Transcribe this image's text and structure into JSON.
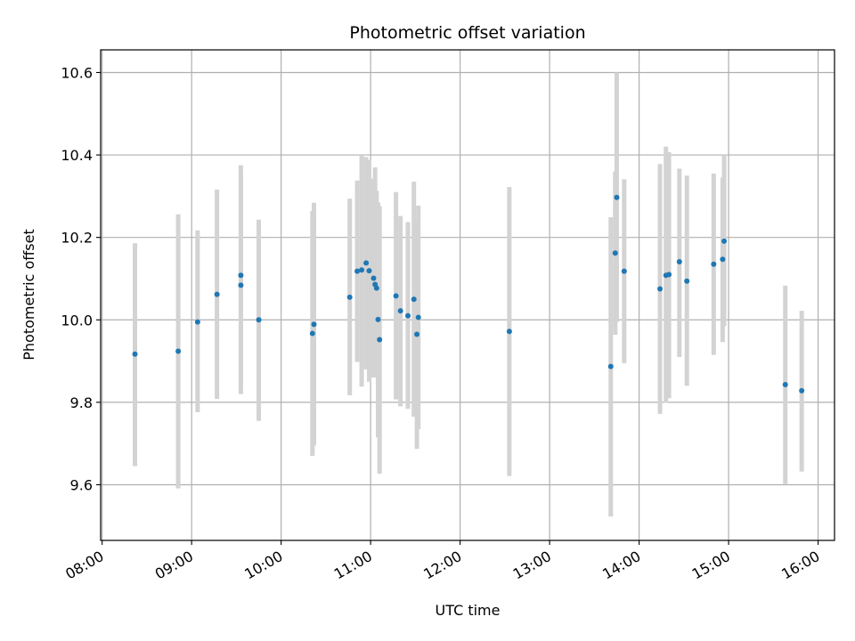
{
  "chart_data": {
    "type": "scatter",
    "title": "Photometric offset variation",
    "xlabel": "UTC time",
    "ylabel": "Photometric offset",
    "xlim": [
      "07:59",
      "16:11"
    ],
    "ylim": [
      9.465,
      10.655
    ],
    "x_ticks": [
      "08:00",
      "09:00",
      "10:00",
      "11:00",
      "12:00",
      "13:00",
      "14:00",
      "15:00",
      "16:00"
    ],
    "y_ticks": [
      "9.6",
      "9.8",
      "10.0",
      "10.2",
      "10.4",
      "10.6"
    ],
    "grid": true,
    "colors": {
      "point": "#1f77b4",
      "errorbar": "#d3d3d3",
      "grid": "#b0b0b0"
    },
    "points": [
      {
        "t": "08:22",
        "y": 9.917,
        "ylo": 9.645,
        "yhi": 10.186
      },
      {
        "t": "08:51",
        "y": 9.924,
        "ylo": 9.591,
        "yhi": 10.256
      },
      {
        "t": "09:04",
        "y": 9.995,
        "ylo": 9.776,
        "yhi": 10.217
      },
      {
        "t": "09:17",
        "y": 10.062,
        "ylo": 9.808,
        "yhi": 10.316
      },
      {
        "t": "09:33",
        "y": 10.108,
        "ylo": 9.842,
        "yhi": 10.375
      },
      {
        "t": "09:33",
        "y": 10.084,
        "ylo": 9.82,
        "yhi": 10.35
      },
      {
        "t": "09:45",
        "y": 10.0,
        "ylo": 9.755,
        "yhi": 10.243
      },
      {
        "t": "10:21",
        "y": 9.967,
        "ylo": 9.67,
        "yhi": 10.264
      },
      {
        "t": "10:22",
        "y": 9.989,
        "ylo": 9.695,
        "yhi": 10.284
      },
      {
        "t": "10:46",
        "y": 10.055,
        "ylo": 9.817,
        "yhi": 10.294
      },
      {
        "t": "10:51",
        "y": 10.118,
        "ylo": 9.898,
        "yhi": 10.338
      },
      {
        "t": "10:54",
        "y": 10.121,
        "ylo": 9.838,
        "yhi": 10.4
      },
      {
        "t": "10:57",
        "y": 10.138,
        "ylo": 9.88,
        "yhi": 10.395
      },
      {
        "t": "10:59",
        "y": 10.119,
        "ylo": 9.85,
        "yhi": 10.388
      },
      {
        "t": "11:02",
        "y": 10.101,
        "ylo": 9.86,
        "yhi": 10.343
      },
      {
        "t": "11:03",
        "y": 10.086,
        "ylo": 9.9,
        "yhi": 10.37
      },
      {
        "t": "11:04",
        "y": 10.077,
        "ylo": 9.87,
        "yhi": 10.313
      },
      {
        "t": "11:05",
        "y": 10.001,
        "ylo": 9.715,
        "yhi": 10.285
      },
      {
        "t": "11:06",
        "y": 9.952,
        "ylo": 9.627,
        "yhi": 10.276
      },
      {
        "t": "11:17",
        "y": 10.058,
        "ylo": 9.807,
        "yhi": 10.31
      },
      {
        "t": "11:20",
        "y": 10.022,
        "ylo": 9.79,
        "yhi": 10.252
      },
      {
        "t": "11:25",
        "y": 10.01,
        "ylo": 9.784,
        "yhi": 10.237
      },
      {
        "t": "11:29",
        "y": 10.05,
        "ylo": 9.765,
        "yhi": 10.335
      },
      {
        "t": "11:31",
        "y": 9.965,
        "ylo": 9.687,
        "yhi": 10.242
      },
      {
        "t": "11:32",
        "y": 10.006,
        "ylo": 9.735,
        "yhi": 10.277
      },
      {
        "t": "12:33",
        "y": 9.972,
        "ylo": 9.621,
        "yhi": 10.322
      },
      {
        "t": "13:41",
        "y": 9.887,
        "ylo": 9.523,
        "yhi": 10.249
      },
      {
        "t": "13:44",
        "y": 10.162,
        "ylo": 9.964,
        "yhi": 10.36
      },
      {
        "t": "13:45",
        "y": 10.297,
        "ylo": 9.995,
        "yhi": 10.6
      },
      {
        "t": "13:50",
        "y": 10.118,
        "ylo": 9.895,
        "yhi": 10.341
      },
      {
        "t": "14:14",
        "y": 10.075,
        "ylo": 9.772,
        "yhi": 10.378
      },
      {
        "t": "14:18",
        "y": 10.108,
        "ylo": 9.799,
        "yhi": 10.42
      },
      {
        "t": "14:20",
        "y": 10.11,
        "ylo": 9.81,
        "yhi": 10.407
      },
      {
        "t": "14:27",
        "y": 10.141,
        "ylo": 9.91,
        "yhi": 10.367
      },
      {
        "t": "14:32",
        "y": 10.094,
        "ylo": 9.84,
        "yhi": 10.35
      },
      {
        "t": "14:50",
        "y": 10.135,
        "ylo": 9.915,
        "yhi": 10.355
      },
      {
        "t": "14:56",
        "y": 10.147,
        "ylo": 9.946,
        "yhi": 10.345
      },
      {
        "t": "14:57",
        "y": 10.191,
        "ylo": 9.985,
        "yhi": 10.398
      },
      {
        "t": "15:38",
        "y": 9.843,
        "ylo": 9.602,
        "yhi": 10.083
      },
      {
        "t": "15:49",
        "y": 9.828,
        "ylo": 9.632,
        "yhi": 10.022
      }
    ]
  }
}
